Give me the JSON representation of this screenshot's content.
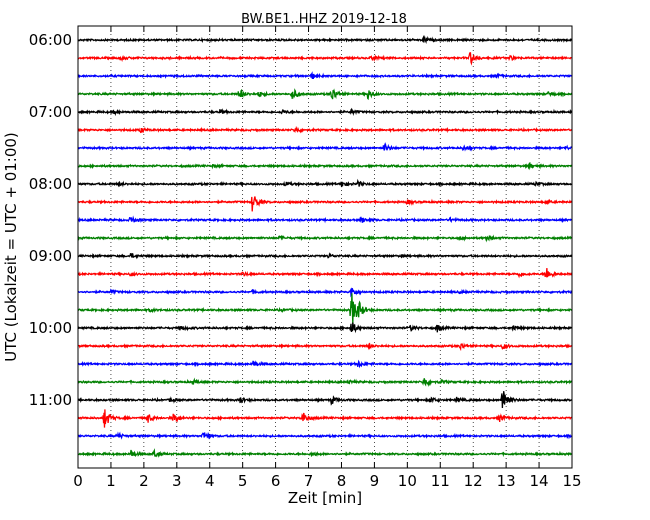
{
  "chart_data": {
    "type": "line",
    "title": "BW.BE1..HHZ 2019-12-18",
    "xlabel": "Zeit  [min]",
    "ylabel": "UTC (Lokalzeit = UTC + 01:00)",
    "xlim": [
      0,
      15
    ],
    "x_ticks": [
      "0",
      "1",
      "2",
      "3",
      "4",
      "5",
      "6",
      "7",
      "8",
      "9",
      "10",
      "11",
      "12",
      "13",
      "14",
      "15"
    ],
    "y_tick_labels": [
      "06:00",
      "07:00",
      "08:00",
      "09:00",
      "10:00",
      "11:00"
    ],
    "grid": "vertical dotted lines at each minute",
    "trace_colors": [
      "#000000",
      "#ff0000",
      "#0000ff",
      "#008000"
    ],
    "row_interval_min": 15,
    "traces": [
      {
        "start": "06:00",
        "color": "#000000",
        "events": [
          {
            "t": 10.5,
            "amp": 0.35
          }
        ]
      },
      {
        "start": "06:15",
        "color": "#ff0000",
        "events": [
          {
            "t": 1.3,
            "amp": 0.25
          },
          {
            "t": 8.9,
            "amp": 0.3
          },
          {
            "t": 11.9,
            "amp": 0.8
          },
          {
            "t": 13.1,
            "amp": 0.25
          }
        ]
      },
      {
        "start": "06:30",
        "color": "#0000ff",
        "events": [
          {
            "t": 7.1,
            "amp": 0.35
          },
          {
            "t": 12.7,
            "amp": 0.2
          }
        ]
      },
      {
        "start": "06:45",
        "color": "#008000",
        "events": [
          {
            "t": 4.9,
            "amp": 0.6
          },
          {
            "t": 5.5,
            "amp": 0.35
          },
          {
            "t": 6.5,
            "amp": 0.7
          },
          {
            "t": 7.7,
            "amp": 0.9
          },
          {
            "t": 8.8,
            "amp": 0.6
          },
          {
            "t": 14.3,
            "amp": 0.3
          }
        ]
      },
      {
        "start": "07:00",
        "color": "#000000",
        "events": [
          {
            "t": 1.1,
            "amp": 0.2
          },
          {
            "t": 4.3,
            "amp": 0.25
          },
          {
            "t": 6.2,
            "amp": 0.25
          },
          {
            "t": 8.3,
            "amp": 0.25
          }
        ]
      },
      {
        "start": "07:15",
        "color": "#ff0000",
        "events": [
          {
            "t": 1.9,
            "amp": 0.3
          },
          {
            "t": 6.6,
            "amp": 0.3
          }
        ]
      },
      {
        "start": "07:30",
        "color": "#0000ff",
        "events": [
          {
            "t": 9.3,
            "amp": 0.5
          },
          {
            "t": 11.7,
            "amp": 0.25
          },
          {
            "t": 14.8,
            "amp": 0.2
          }
        ]
      },
      {
        "start": "07:45",
        "color": "#008000",
        "events": [
          {
            "t": 13.7,
            "amp": 0.3
          },
          {
            "t": 4.1,
            "amp": 0.15
          }
        ]
      },
      {
        "start": "08:00",
        "color": "#000000",
        "events": [
          {
            "t": 1.2,
            "amp": 0.2
          },
          {
            "t": 6.3,
            "amp": 0.2
          },
          {
            "t": 8.0,
            "amp": 0.35
          },
          {
            "t": 8.5,
            "amp": 0.3
          },
          {
            "t": 13.9,
            "amp": 0.2
          }
        ]
      },
      {
        "start": "08:15",
        "color": "#ff0000",
        "events": [
          {
            "t": 5.3,
            "amp": 1.2
          },
          {
            "t": 10.0,
            "amp": 0.25
          },
          {
            "t": 14.2,
            "amp": 0.2
          }
        ]
      },
      {
        "start": "08:30",
        "color": "#0000ff",
        "events": [
          {
            "t": 1.6,
            "amp": 0.45
          },
          {
            "t": 8.6,
            "amp": 0.35
          },
          {
            "t": 11.3,
            "amp": 0.2
          }
        ]
      },
      {
        "start": "08:45",
        "color": "#008000",
        "events": [
          {
            "t": 6.1,
            "amp": 0.15
          },
          {
            "t": 11.6,
            "amp": 0.2
          },
          {
            "t": 12.4,
            "amp": 0.25
          }
        ]
      },
      {
        "start": "09:00",
        "color": "#000000",
        "events": [
          {
            "t": 1.6,
            "amp": 0.25
          },
          {
            "t": 7.6,
            "amp": 0.2
          },
          {
            "t": 9.8,
            "amp": 0.15
          }
        ]
      },
      {
        "start": "09:15",
        "color": "#ff0000",
        "events": [
          {
            "t": 1.6,
            "amp": 0.2
          },
          {
            "t": 5.0,
            "amp": 0.2
          },
          {
            "t": 13.4,
            "amp": 0.3
          },
          {
            "t": 14.2,
            "amp": 0.9
          }
        ]
      },
      {
        "start": "09:30",
        "color": "#0000ff",
        "events": [
          {
            "t": 1.0,
            "amp": 0.2
          },
          {
            "t": 5.3,
            "amp": 0.2
          },
          {
            "t": 8.3,
            "amp": 0.6
          },
          {
            "t": 11.6,
            "amp": 0.15
          }
        ]
      },
      {
        "start": "09:45",
        "color": "#008000",
        "events": [
          {
            "t": 8.3,
            "amp": 2.2
          },
          {
            "t": 8.5,
            "amp": 0.8
          },
          {
            "t": 6.2,
            "amp": 0.15
          },
          {
            "t": 2.2,
            "amp": 0.15
          }
        ]
      },
      {
        "start": "10:00",
        "color": "#000000",
        "events": [
          {
            "t": 3.1,
            "amp": 0.3
          },
          {
            "t": 8.3,
            "amp": 0.8
          },
          {
            "t": 10.1,
            "amp": 0.3
          },
          {
            "t": 10.9,
            "amp": 0.45
          },
          {
            "t": 13.2,
            "amp": 0.3
          }
        ]
      },
      {
        "start": "10:15",
        "color": "#ff0000",
        "events": [
          {
            "t": 8.8,
            "amp": 0.3
          },
          {
            "t": 11.6,
            "amp": 0.4
          },
          {
            "t": 12.9,
            "amp": 0.35
          }
        ]
      },
      {
        "start": "10:30",
        "color": "#0000ff",
        "events": [
          {
            "t": 5.3,
            "amp": 0.35
          },
          {
            "t": 8.5,
            "amp": 0.35
          }
        ]
      },
      {
        "start": "10:45",
        "color": "#008000",
        "events": [
          {
            "t": 3.5,
            "amp": 0.25
          },
          {
            "t": 8.2,
            "amp": 0.2
          },
          {
            "t": 10.5,
            "amp": 0.6
          },
          {
            "t": 11.0,
            "amp": 0.25
          }
        ]
      },
      {
        "start": "11:00",
        "color": "#000000",
        "events": [
          {
            "t": 2.8,
            "amp": 0.2
          },
          {
            "t": 4.9,
            "amp": 0.35
          },
          {
            "t": 7.7,
            "amp": 0.45
          },
          {
            "t": 10.7,
            "amp": 0.35
          },
          {
            "t": 11.5,
            "amp": 0.3
          },
          {
            "t": 12.9,
            "amp": 1.8
          }
        ]
      },
      {
        "start": "11:15",
        "color": "#ff0000",
        "events": [
          {
            "t": 0.8,
            "amp": 1.2
          },
          {
            "t": 2.1,
            "amp": 0.6
          },
          {
            "t": 2.9,
            "amp": 0.6
          },
          {
            "t": 6.8,
            "amp": 0.8
          },
          {
            "t": 12.8,
            "amp": 0.4
          }
        ]
      },
      {
        "start": "11:30",
        "color": "#0000ff",
        "events": [
          {
            "t": 1.2,
            "amp": 0.35
          },
          {
            "t": 3.8,
            "amp": 0.5
          }
        ]
      },
      {
        "start": "11:45",
        "color": "#008000",
        "events": [
          {
            "t": 1.6,
            "amp": 0.45
          },
          {
            "t": 2.3,
            "amp": 0.4
          },
          {
            "t": 7.1,
            "amp": 0.2
          }
        ]
      }
    ]
  }
}
